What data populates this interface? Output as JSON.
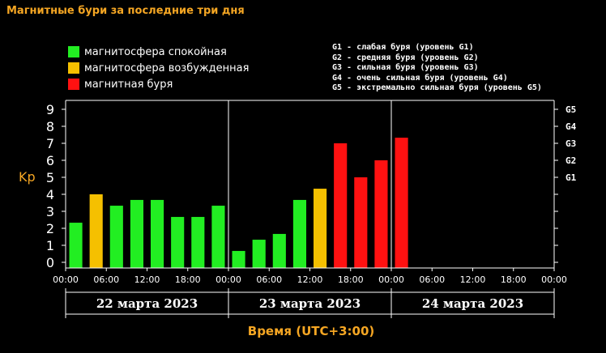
{
  "title": "Магнитные бури за последние три дня",
  "legend": [
    {
      "label": "магнитосфера спокойная",
      "color": "#22ee22"
    },
    {
      "label": "магнитосфера возбужденная",
      "color": "#f5c000"
    },
    {
      "label": "магнитная буря",
      "color": "#ff1111"
    }
  ],
  "storm_legend": [
    "G1 - слабая буря (уровень G1)",
    "G2 - средняя буря (уровень G2)",
    "G3 - сильная буря (уровень G3)",
    "G4 - очень сильная буря (уровень G4)",
    "G5 - экстремально сильная буря (уровень G5)"
  ],
  "chart_data": {
    "type": "bar",
    "ylabel": "Kp",
    "xlabel": "Время (UTC+3:00)",
    "ylim": [
      0,
      9
    ],
    "y_ticks": [
      "0",
      "1",
      "2",
      "3",
      "4",
      "5",
      "6",
      "7",
      "8",
      "9"
    ],
    "g_ticks": [
      {
        "label": "G1",
        "value": 5
      },
      {
        "label": "G2",
        "value": 6
      },
      {
        "label": "G3",
        "value": 7
      },
      {
        "label": "G4",
        "value": 8
      },
      {
        "label": "G5",
        "value": 9
      }
    ],
    "days": [
      "22 марта 2023",
      "23 марта 2023",
      "24 марта 2023"
    ],
    "x_tick_labels": [
      "00:00",
      "06:00",
      "12:00",
      "18:00",
      "00:00",
      "06:00",
      "12:00",
      "18:00",
      "00:00",
      "06:00",
      "12:00",
      "18:00",
      "00:00"
    ],
    "slots_per_day": 8,
    "values": [
      2.33,
      4.0,
      3.33,
      3.67,
      3.67,
      2.67,
      2.67,
      3.33,
      0.67,
      1.33,
      1.67,
      3.67,
      4.33,
      7.0,
      5.0,
      6.0,
      7.33
    ],
    "colors": {
      "quiet": "#22ee22",
      "active": "#f5c000",
      "storm": "#ff1111"
    },
    "grid": false
  }
}
